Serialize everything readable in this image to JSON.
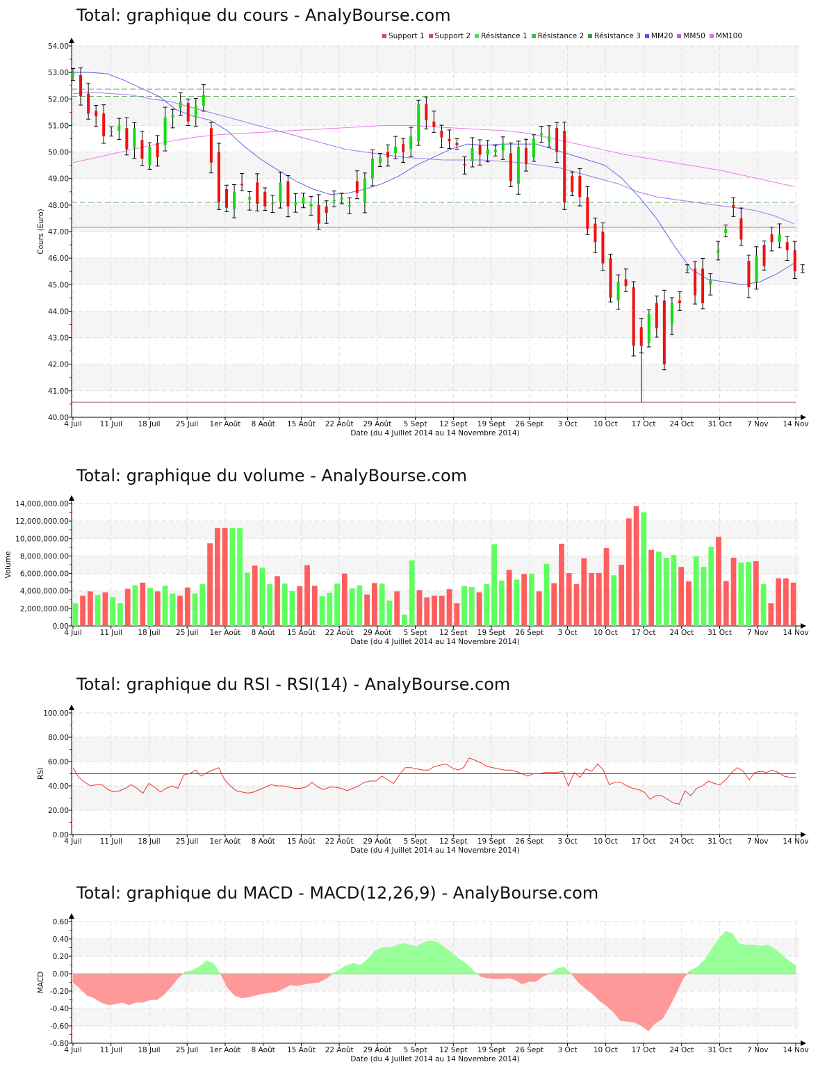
{
  "titles": {
    "price": "Total: graphique du cours - AnalyBourse.com",
    "volume": "Total: graphique du volume - AnalyBourse.com",
    "rsi": "Total: graphique du RSI - RSI(14) - AnalyBourse.com",
    "macd": "Total: graphique du MACD - MACD(12,26,9) - AnalyBourse.com"
  },
  "legend": [
    {
      "label": "Support 1",
      "color": "#d05050"
    },
    {
      "label": "Support 2",
      "color": "#b86060"
    },
    {
      "label": "Résistance 1",
      "color": "#55dd55"
    },
    {
      "label": "Résistance 2",
      "color": "#44bb55"
    },
    {
      "label": "Résistance 3",
      "color": "#449955"
    },
    {
      "label": "MM20",
      "color": "#5555ee"
    },
    {
      "label": "MM50",
      "color": "#aa66ee"
    },
    {
      "label": "MM100",
      "color": "#ee66ee"
    }
  ],
  "xaxis": {
    "label": "Date (du 4 Juillet 2014 au 14 Novembre 2014)",
    "ticks": [
      "4 Juil",
      "11 Juil",
      "18 Juil",
      "25 Juil",
      "1er Août",
      "8 Août",
      "15 Août",
      "22 Août",
      "29 Août",
      "5 Sept",
      "12 Sept",
      "19 Sept",
      "26 Sept",
      "3 Oct",
      "10 Oct",
      "17 Oct",
      "24 Oct",
      "31 Oct",
      "7 Nov",
      "14 Nov"
    ]
  },
  "chart_data": [
    {
      "type": "candlestick",
      "title": "Total: graphique du cours - AnalyBourse.com",
      "xlabel": "Date (du 4 Juillet 2014 au 14 Novembre 2014)",
      "ylabel": "Cours (Euro)",
      "ylim": [
        40,
        54
      ],
      "yticks": [
        "40.00",
        "41.00",
        "42.00",
        "43.00",
        "44.00",
        "45.00",
        "46.00",
        "47.00",
        "48.00",
        "49.00",
        "50.00",
        "51.00",
        "52.00",
        "53.00",
        "54.00"
      ],
      "levels": {
        "support_1": 47.17,
        "support_2": 40.57,
        "resistance_1": 48.1,
        "resistance_2": 52.1,
        "resistance_3": 52.37
      },
      "candles": [
        [
          52.85,
          53.1,
          53.5,
          52.8
        ],
        [
          52.9,
          52.0,
          52.95,
          51.95
        ],
        [
          52.2,
          51.4,
          52.6,
          51.4
        ],
        [
          51.55,
          51.3,
          51.7,
          51.2
        ],
        [
          51.45,
          50.55,
          51.5,
          50.35
        ],
        [
          50.75,
          50.8,
          51.0,
          50.6
        ],
        [
          50.8,
          51.1,
          51.2,
          50.7
        ],
        [
          50.9,
          50.05,
          51.05,
          50.05
        ],
        [
          50.15,
          50.9,
          51.2,
          50.15
        ],
        [
          50.45,
          49.7,
          50.6,
          49.65
        ],
        [
          49.5,
          50.25,
          50.25,
          49.45
        ],
        [
          50.35,
          49.75,
          50.5,
          49.75
        ],
        [
          50.25,
          51.35,
          51.4,
          50.2
        ],
        [
          51.3,
          51.4,
          51.8,
          50.9
        ],
        [
          51.65,
          51.95,
          52.0,
          51.1
        ],
        [
          51.85,
          51.1,
          51.85,
          50.85
        ],
        [
          51.3,
          51.8,
          51.8,
          51.1
        ],
        [
          51.75,
          52.2,
          52.35,
          51.45
        ],
        [
          50.9,
          49.6,
          51.4,
          49.45
        ],
        [
          50.0,
          48.1,
          50.0,
          48.1
        ],
        [
          48.6,
          47.85,
          48.75,
          47.75
        ],
        [
          47.85,
          48.55,
          48.7,
          47.95
        ],
        [
          48.8,
          48.75,
          48.9,
          48.6
        ],
        [
          48.2,
          48.75,
          48.8,
          47.85
        ],
        [
          48.85,
          48.0,
          48.9,
          48.0
        ],
        [
          48.5,
          47.95,
          48.6,
          47.95
        ],
        [
          48.05,
          48.1,
          48.2,
          47.75
        ],
        [
          48.1,
          48.9,
          49.1,
          48.35
        ],
        [
          48.9,
          47.8,
          48.9,
          47.45
        ],
        [
          48.0,
          48.1,
          48.15,
          47.95
        ],
        [
          48.05,
          48.3,
          48.45,
          47.65
        ],
        [
          47.95,
          48.0,
          48.15,
          47.7
        ],
        [
          48.0,
          47.25,
          48.3,
          47.2
        ],
        [
          47.95,
          47.65,
          48.0,
          47.6
        ],
        [
          48.2,
          48.15,
          48.3,
          47.75
        ],
        [
          48.2,
          48.25,
          48.4,
          48.0
        ],
        [
          48.0,
          48.3,
          48.6,
          47.5
        ],
        [
          48.9,
          48.3,
          49.0,
          47.85
        ],
        [
          48.1,
          49.0,
          49.1,
          48.25
        ],
        [
          49.8,
          49.7,
          50.3,
          49.8
        ]
      ],
      "ma": {
        "MM20": "decreasing from ~53.0 (Jul) to ~48.5 (late Aug), rising to ~50.3 (late Sept), falling to ~45.2 (end Oct), ~45.8 mid Nov",
        "MM50": "~52.2 (Jul) declining to ~49.6 (Sept), ~47.3 (mid Nov)",
        "MM100": "~49.6 (Jul) rising to ~51.0 (Sept), declining to ~48.7 (mid Nov)"
      }
    },
    {
      "type": "bar",
      "title": "Total: graphique du volume - AnalyBourse.com",
      "xlabel": "Date (du 4 Juillet 2014 au 14 Novembre 2014)",
      "ylabel": "Volume",
      "ylim": [
        0,
        14000000
      ],
      "yticks": [
        "0.00",
        "2,000,000.00",
        "4,000,000.00",
        "6,000,000.00",
        "8,000,000.00",
        "10,000,000.00",
        "12,000,000.00",
        "14,000,000.00"
      ],
      "values": [
        2600000,
        3450000,
        3950000,
        3550000,
        3850000,
        3300000,
        2600000,
        4250000,
        4650000,
        4950000,
        4350000,
        3950000,
        4600000,
        3700000,
        3450000,
        4400000,
        3700000,
        4800000,
        9450000,
        11200000,
        11200000,
        11200000,
        11200000,
        6100000,
        6900000,
        6650000,
        4800000,
        5700000,
        4850000,
        4000000,
        4550000,
        6950000,
        4600000,
        3400000,
        3800000,
        4850000,
        6000000,
        4300000,
        4650000,
        3600000,
        4900000,
        4850000,
        2900000,
        3950000,
        1300000,
        7500000,
        4100000,
        3250000,
        3450000,
        3450000,
        4200000,
        2600000,
        4550000,
        4450000,
        3850000,
        4800000,
        9350000,
        5200000,
        6400000,
        5300000,
        5950000,
        5950000,
        3950000,
        7100000,
        4900000,
        9400000,
        6050000,
        4800000,
        7750000,
        6050000,
        6050000,
        8900000,
        5800000,
        7000000,
        12300000,
        13700000,
        13000000,
        8700000,
        8500000,
        7800000,
        8100000,
        6750000,
        5100000,
        7950000,
        6750000,
        9050000,
        10200000,
        5150000,
        7800000,
        7250000,
        7300000,
        7400000,
        4800000,
        2600000,
        5450000,
        5450000,
        4950000
      ],
      "colors": [
        "g",
        "r",
        "r",
        "g",
        "r",
        "g",
        "g",
        "r",
        "g",
        "r",
        "g",
        "r",
        "g",
        "g",
        "r",
        "r",
        "g",
        "g",
        "r",
        "r",
        "r",
        "g",
        "g",
        "g",
        "r",
        "g",
        "g",
        "r",
        "g",
        "g",
        "r",
        "r",
        "r",
        "g",
        "g",
        "g",
        "r",
        "g",
        "g",
        "r",
        "r",
        "g",
        "g",
        "r",
        "g",
        "g",
        "r",
        "r",
        "r",
        "r",
        "r",
        "r",
        "g",
        "g",
        "r",
        "g",
        "g",
        "g",
        "r",
        "g",
        "r",
        "g",
        "r",
        "g",
        "r",
        "r",
        "r",
        "r",
        "r",
        "r",
        "r",
        "r",
        "g",
        "r",
        "r",
        "r",
        "g",
        "r",
        "g",
        "g",
        "g",
        "r",
        "r",
        "g",
        "g",
        "g",
        "r",
        "r",
        "r",
        "g",
        "g",
        "r",
        "g",
        "r",
        "r",
        "r",
        "r"
      ]
    },
    {
      "type": "line",
      "title": "Total: graphique du RSI - RSI(14) - AnalyBourse.com",
      "xlabel": "Date (du 4 Juillet 2014 au 14 Novembre 2014)",
      "ylabel": "RSI",
      "ylim": [
        0,
        100
      ],
      "yticks": [
        "0.00",
        "20.00",
        "40.00",
        "60.00",
        "80.00",
        "100.00"
      ],
      "reference_line": 50,
      "values": [
        55,
        47,
        43,
        40,
        41,
        41,
        37,
        35,
        36,
        38,
        41,
        38,
        34,
        42,
        39,
        35,
        38,
        40,
        38,
        49,
        50,
        53,
        48,
        51,
        53,
        55,
        45,
        40,
        36,
        35,
        34,
        35,
        37,
        39,
        41,
        40,
        40,
        39,
        38,
        38,
        39,
        43,
        39,
        37,
        39,
        39,
        38,
        36,
        38,
        40,
        43,
        44,
        44,
        48,
        45,
        42,
        49,
        55,
        55,
        54,
        53,
        53,
        56,
        57,
        58,
        55,
        53,
        55,
        63,
        61,
        59,
        56,
        55,
        54,
        53,
        53,
        52,
        50,
        48,
        50,
        50,
        51,
        51,
        51,
        52,
        40,
        51,
        47,
        54,
        52,
        58,
        53,
        41,
        43,
        43,
        40,
        38,
        37,
        35,
        29,
        32,
        32,
        29,
        26,
        25,
        36,
        32,
        38,
        40,
        44,
        42,
        41,
        45,
        51,
        55,
        52,
        45,
        51,
        52,
        51,
        53,
        51,
        48,
        47,
        47
      ],
      "note": "approximate, ~95 trading days"
    },
    {
      "type": "area",
      "title": "Total: graphique du MACD - MACD(12,26,9) - AnalyBourse.com",
      "xlabel": "Date (du 4 Juillet 2014 au 14 Novembre 2014)",
      "ylabel": "MACD",
      "ylim": [
        -0.8,
        0.6
      ],
      "yticks": [
        "-0.80",
        "-0.60",
        "-0.40",
        "-0.20",
        "0.00",
        "0.20",
        "0.40",
        "0.60"
      ],
      "values": [
        -0.1,
        -0.17,
        -0.25,
        -0.28,
        -0.33,
        -0.36,
        -0.35,
        -0.33,
        -0.36,
        -0.33,
        -0.33,
        -0.3,
        -0.3,
        -0.24,
        -0.15,
        -0.05,
        0.02,
        0.04,
        0.08,
        0.15,
        0.12,
        0.0,
        -0.16,
        -0.25,
        -0.28,
        -0.27,
        -0.25,
        -0.23,
        -0.22,
        -0.21,
        -0.17,
        -0.13,
        -0.14,
        -0.12,
        -0.11,
        -0.1,
        -0.06,
        0.0,
        0.05,
        0.1,
        0.12,
        0.1,
        0.17,
        0.26,
        0.3,
        0.3,
        0.32,
        0.35,
        0.33,
        0.31,
        0.36,
        0.38,
        0.36,
        0.3,
        0.24,
        0.17,
        0.12,
        0.04,
        -0.03,
        -0.05,
        -0.06,
        -0.06,
        -0.05,
        -0.07,
        -0.12,
        -0.09,
        -0.09,
        -0.03,
        0.0,
        0.06,
        0.08,
        0.0,
        -0.1,
        -0.17,
        -0.23,
        -0.31,
        -0.37,
        -0.44,
        -0.54,
        -0.55,
        -0.56,
        -0.6,
        -0.66,
        -0.57,
        -0.52,
        -0.38,
        -0.22,
        -0.05,
        0.04,
        0.08,
        0.16,
        0.28,
        0.4,
        0.49,
        0.46,
        0.34,
        0.33,
        0.33,
        0.32,
        0.33,
        0.29,
        0.22,
        0.15,
        0.09
      ],
      "positive_color": "#99ff99",
      "negative_color": "#ff9999"
    }
  ]
}
